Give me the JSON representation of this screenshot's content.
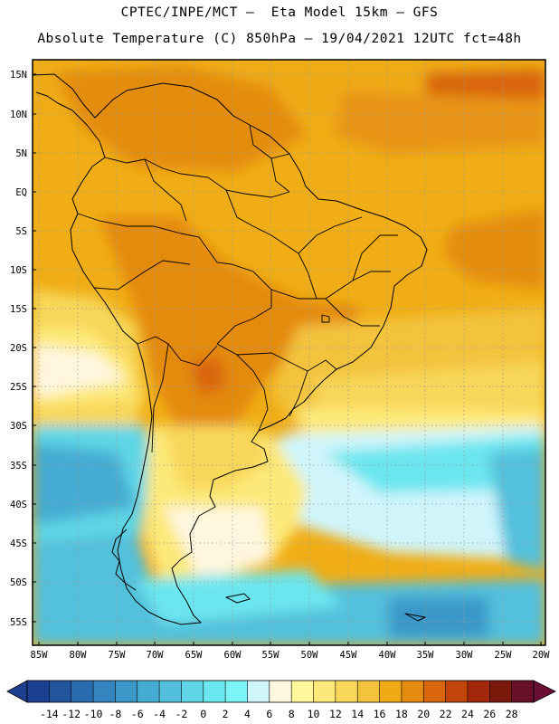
{
  "header": {
    "line1": "CPTEC/INPE/MCT –  Eta Model 15km – GFS",
    "line2": "Absolute Temperature (C) 850hPa – 19/04/2021 12UTC fct=48h"
  },
  "axes": {
    "lat_labels": [
      "15N",
      "10N",
      "5N",
      "EQ",
      "5S",
      "10S",
      "15S",
      "20S",
      "25S",
      "30S",
      "35S",
      "40S",
      "45S",
      "50S",
      "55S"
    ],
    "lon_labels": [
      "85W",
      "80W",
      "75W",
      "70W",
      "65W",
      "60W",
      "55W",
      "50W",
      "45W",
      "40W",
      "35W",
      "30W",
      "25W",
      "20W"
    ]
  },
  "colorbar": {
    "labels": [
      "-14",
      "-12",
      "-10",
      "-8",
      "-6",
      "-4",
      "-2",
      "0",
      "2",
      "4",
      "6",
      "8",
      "10",
      "12",
      "14",
      "16",
      "18",
      "20",
      "22",
      "24",
      "26",
      "28"
    ],
    "colors": [
      "#1d3f8f",
      "#22559e",
      "#2a6cb0",
      "#3384bf",
      "#3b98c9",
      "#45abd2",
      "#52c0dc",
      "#5fd6e6",
      "#6ce6ee",
      "#7cf4f6",
      "#cff5fb",
      "#fff6df",
      "#fff79a",
      "#fde979",
      "#f8d75a",
      "#f3c33c",
      "#efaa14",
      "#e48a0e",
      "#d9650c",
      "#c1440a",
      "#a1280a",
      "#7a1a0c",
      "#66102a"
    ],
    "under_color": "#1d3f8f",
    "over_color": "#6a0f33"
  }
}
